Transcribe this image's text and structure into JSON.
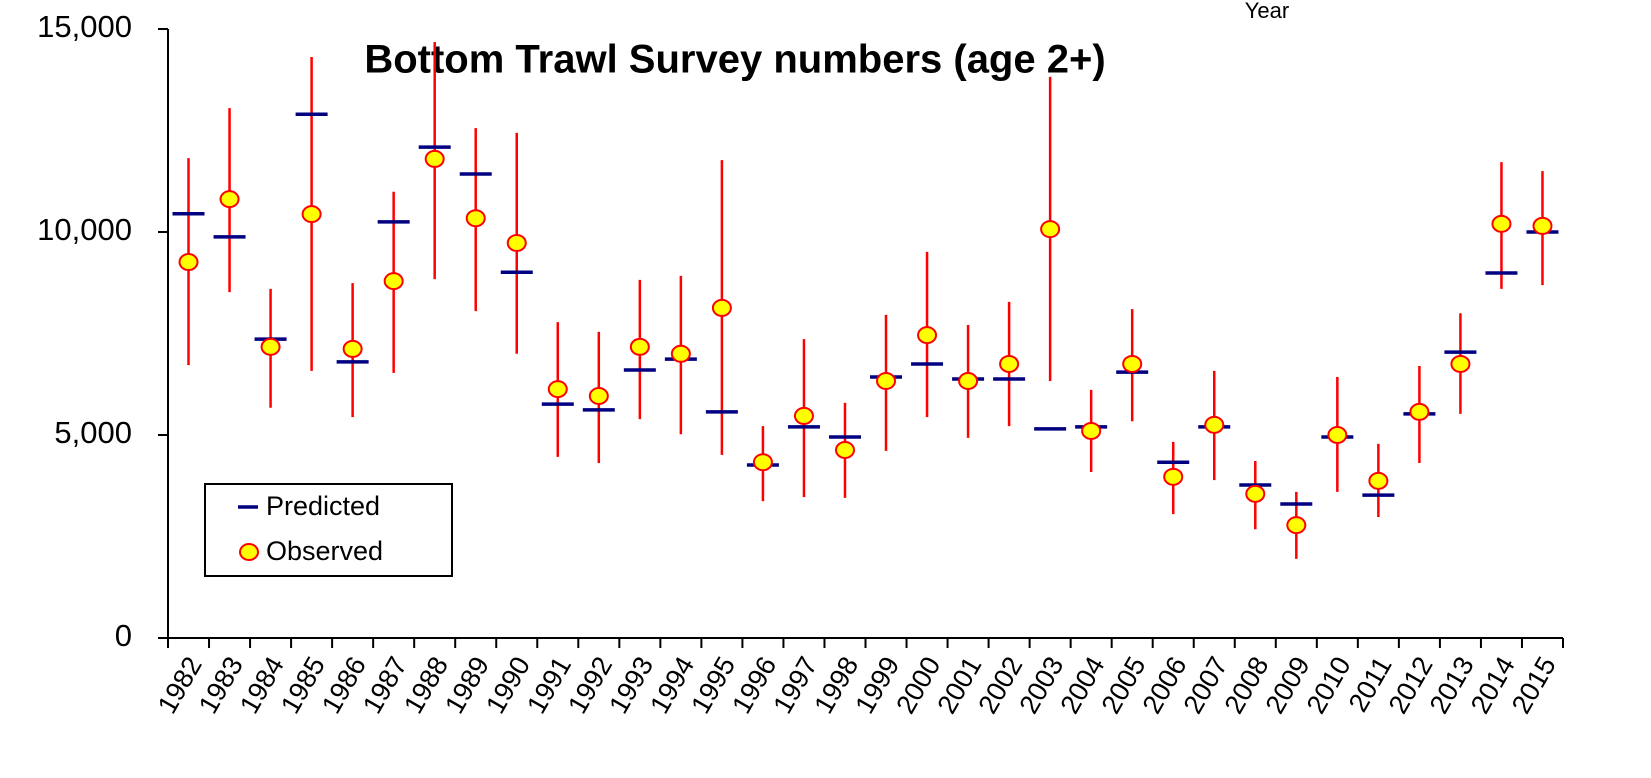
{
  "chart_data": {
    "type": "errorbar",
    "title": "Bottom Trawl Survey numbers (age 2+)",
    "x_label": "Year",
    "categories": [
      "1982",
      "1983",
      "1984",
      "1985",
      "1986",
      "1987",
      "1988",
      "1989",
      "1990",
      "1991",
      "1992",
      "1993",
      "1994",
      "1995",
      "1996",
      "1997",
      "1998",
      "1999",
      "2000",
      "2001",
      "2002",
      "2003",
      "2004",
      "2005",
      "2006",
      "2007",
      "2008",
      "2009",
      "2010",
      "2011",
      "2012",
      "2013",
      "2014",
      "2015"
    ],
    "series": [
      {
        "name": "Predicted",
        "color": "#000080",
        "marker": "dash",
        "values": [
          10450,
          9880,
          7360,
          12900,
          6800,
          10250,
          12090,
          11430,
          9010,
          5760,
          5620,
          6600,
          6870,
          5570,
          4260,
          5200,
          4950,
          6430,
          6750,
          6380,
          6380,
          5150,
          5200,
          6550,
          4330,
          5200,
          3770,
          3300,
          4950,
          3520,
          5520,
          7040,
          8990,
          10000
        ]
      },
      {
        "name": "Observed",
        "color": "#ffff00",
        "edge_color": "#ff0000",
        "marker": "circle",
        "values": [
          9260,
          10810,
          7170,
          10440,
          7120,
          8790,
          11800,
          10340,
          9730,
          6130,
          5960,
          7170,
          7000,
          8130,
          4330,
          5470,
          4630,
          6330,
          7460,
          6330,
          6750,
          10070,
          5100,
          6750,
          3970,
          5250,
          3550,
          2780,
          5000,
          3870,
          5570,
          6750,
          10200,
          10150
        ],
        "lower": [
          6720,
          8520,
          5670,
          6580,
          5440,
          6530,
          8840,
          8050,
          7000,
          4460,
          4310,
          5390,
          5020,
          4510,
          3370,
          3470,
          3450,
          4610,
          5440,
          4930,
          5220,
          6330,
          4090,
          5340,
          3050,
          3890,
          2680,
          1950,
          3600,
          2980,
          4310,
          5520,
          8600,
          8690
        ],
        "upper": [
          11820,
          13050,
          8600,
          14310,
          8740,
          10990,
          14680,
          12560,
          12440,
          7780,
          7540,
          8820,
          8920,
          11770,
          5220,
          7360,
          5790,
          7960,
          9510,
          7710,
          8280,
          13820,
          6110,
          8100,
          4830,
          6580,
          4360,
          3600,
          6430,
          4780,
          6700,
          8000,
          11720,
          11500
        ]
      }
    ],
    "ylim": [
      0,
      15000
    ],
    "yticks": [
      {
        "value": 0,
        "label": "0"
      },
      {
        "value": 5000,
        "label": "5,000"
      },
      {
        "value": 10000,
        "label": "10,000"
      },
      {
        "value": 15000,
        "label": "15,000"
      }
    ],
    "grid": false,
    "legend": "lower-left"
  }
}
